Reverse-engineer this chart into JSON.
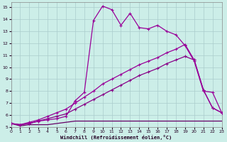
{
  "bg_color": "#cceee8",
  "grid_color": "#aacccc",
  "xlabel": "Windchill (Refroidissement éolien,°C)",
  "xlim": [
    0,
    23
  ],
  "ylim": [
    5,
    15.4
  ],
  "xticks": [
    0,
    1,
    2,
    3,
    4,
    5,
    6,
    7,
    8,
    9,
    10,
    11,
    12,
    13,
    14,
    15,
    16,
    17,
    18,
    19,
    20,
    21,
    22,
    23
  ],
  "yticks": [
    5,
    6,
    7,
    8,
    9,
    10,
    11,
    12,
    13,
    14,
    15
  ],
  "c1": "#990099",
  "c2": "#990099",
  "c3": "#880088",
  "c4": "#660066",
  "s1_x": [
    0,
    1,
    2,
    3,
    4,
    5,
    6,
    7,
    8,
    9,
    10,
    11,
    12,
    13,
    14,
    15,
    16,
    17,
    18,
    19,
    20,
    21,
    22,
    23
  ],
  "s1_y": [
    5.3,
    5.1,
    5.2,
    5.2,
    5.2,
    5.3,
    5.4,
    5.5,
    5.5,
    5.5,
    5.5,
    5.5,
    5.5,
    5.5,
    5.5,
    5.5,
    5.5,
    5.5,
    5.5,
    5.5,
    5.5,
    5.5,
    5.5,
    5.5
  ],
  "s2_x": [
    0,
    1,
    2,
    3,
    4,
    5,
    6,
    7,
    8,
    9,
    10,
    11,
    12,
    13,
    14,
    15,
    16,
    17,
    18,
    19,
    20,
    21,
    22,
    23
  ],
  "s2_y": [
    5.3,
    5.2,
    5.3,
    5.5,
    5.7,
    5.9,
    6.1,
    6.5,
    6.9,
    7.3,
    7.7,
    8.1,
    8.5,
    8.9,
    9.3,
    9.6,
    9.9,
    10.3,
    10.6,
    10.9,
    10.6,
    8.1,
    6.6,
    6.2
  ],
  "s3_x": [
    0,
    1,
    2,
    3,
    4,
    5,
    6,
    7,
    8,
    9,
    10,
    11,
    12,
    13,
    14,
    15,
    16,
    17,
    18,
    19,
    20,
    21,
    22,
    23
  ],
  "s3_y": [
    5.3,
    5.2,
    5.4,
    5.6,
    5.9,
    6.2,
    6.5,
    7.0,
    7.5,
    8.0,
    8.6,
    9.0,
    9.4,
    9.8,
    10.2,
    10.5,
    10.8,
    11.2,
    11.5,
    11.9,
    10.6,
    8.1,
    6.6,
    6.2
  ],
  "s4_x": [
    0,
    1,
    2,
    3,
    4,
    5,
    6,
    7,
    8,
    9,
    10,
    11,
    12,
    13,
    14,
    15,
    16,
    17,
    18,
    19,
    20,
    21,
    22,
    23
  ],
  "s4_y": [
    5.3,
    5.2,
    5.3,
    5.5,
    5.6,
    5.7,
    5.9,
    7.2,
    7.9,
    13.9,
    15.1,
    14.8,
    13.5,
    14.5,
    13.3,
    13.2,
    13.5,
    13.0,
    12.7,
    11.8,
    10.5,
    8.0,
    7.9,
    6.2
  ]
}
